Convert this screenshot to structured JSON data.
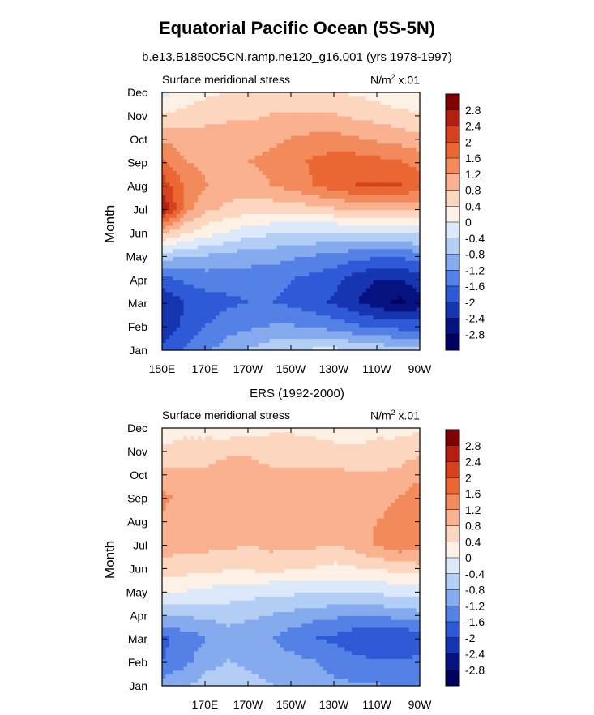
{
  "title": "Equatorial Pacific Ocean (5S-5N)",
  "subtitle": "b.e13.B1850C5CN.ramp.ne120_g16.001 (yrs 1978-1997)",
  "colorbar": {
    "labels": [
      "2.8",
      "2.4",
      "2",
      "1.6",
      "1.2",
      "0.8",
      "0.4",
      "0",
      "-0.4",
      "-0.8",
      "-1.2",
      "-1.6",
      "-2",
      "-2.4",
      "-2.8"
    ],
    "colors": [
      "#7f0000",
      "#b3200f",
      "#d5421d",
      "#ea6633",
      "#f28a5b",
      "#f9b18f",
      "#fcd6bf",
      "#fdf0e4",
      "#dce9fa",
      "#b3cef5",
      "#85aaee",
      "#5481e6",
      "#2e5ad8",
      "#1635b0",
      "#061280",
      "#000060"
    ]
  },
  "chart_data": [
    {
      "type": "heatmap",
      "title": "",
      "left_label": "Surface meridional stress",
      "right_label": "N/m",
      "right_label_sup": "2",
      "right_label_suffix": " x.01",
      "xlabel": "",
      "ylabel": "Month",
      "x_ticks": [
        "150E",
        "170E",
        "170W",
        "150W",
        "130W",
        "110W",
        "90W"
      ],
      "y_ticks": [
        "Jan",
        "Feb",
        "Mar",
        "Apr",
        "May",
        "Jun",
        "Jul",
        "Aug",
        "Sep",
        "Oct",
        "Nov",
        "Dec"
      ],
      "levels": [
        -2.8,
        -2.4,
        -2.0,
        -1.6,
        -1.2,
        -0.8,
        -0.4,
        0,
        0.4,
        0.8,
        1.2,
        1.6,
        2.0,
        2.4,
        2.8
      ],
      "lon": [
        150,
        160,
        170,
        180,
        190,
        200,
        210,
        220,
        230,
        240,
        250,
        260,
        270
      ],
      "values": [
        [
          -1.9,
          -1.6,
          -1.3,
          -1.0,
          -0.8,
          -0.6,
          -0.5,
          -0.4,
          -0.4,
          -0.5,
          -0.6,
          -0.7,
          -0.7
        ],
        [
          -2.3,
          -1.9,
          -1.6,
          -1.4,
          -1.3,
          -1.2,
          -1.2,
          -1.3,
          -1.4,
          -1.6,
          -1.7,
          -1.8,
          -1.8
        ],
        [
          -2.4,
          -2.0,
          -1.8,
          -1.7,
          -1.6,
          -1.6,
          -1.7,
          -1.9,
          -2.1,
          -2.4,
          -2.7,
          -2.9,
          -2.6
        ],
        [
          -1.7,
          -1.5,
          -1.4,
          -1.4,
          -1.4,
          -1.5,
          -1.6,
          -1.7,
          -1.9,
          -2.2,
          -2.4,
          -2.4,
          -2.1
        ],
        [
          -0.6,
          -0.7,
          -0.8,
          -0.9,
          -1.0,
          -1.0,
          -1.1,
          -1.2,
          -1.3,
          -1.4,
          -1.5,
          -1.5,
          -1.3
        ],
        [
          0.9,
          0.5,
          0.2,
          0.0,
          -0.2,
          -0.3,
          -0.4,
          -0.4,
          -0.4,
          -0.4,
          -0.3,
          -0.3,
          -0.2
        ],
        [
          2.7,
          1.4,
          0.9,
          0.7,
          0.6,
          0.6,
          0.6,
          0.7,
          0.8,
          0.9,
          1.0,
          1.0,
          0.9
        ],
        [
          2.2,
          1.5,
          1.2,
          1.1,
          1.0,
          1.2,
          1.4,
          1.6,
          1.9,
          2.0,
          2.0,
          2.0,
          1.8
        ],
        [
          1.6,
          1.2,
          1.1,
          1.1,
          1.2,
          1.3,
          1.4,
          1.7,
          1.8,
          1.8,
          1.7,
          1.6,
          1.4
        ],
        [
          1.1,
          1.0,
          1.0,
          1.0,
          1.1,
          1.1,
          1.2,
          1.3,
          1.3,
          1.2,
          1.1,
          1.0,
          0.9
        ],
        [
          0.4,
          0.5,
          0.6,
          0.7,
          0.7,
          0.8,
          0.8,
          0.8,
          0.8,
          0.7,
          0.6,
          0.5,
          0.4
        ],
        [
          -0.2,
          0.2,
          0.3,
          0.4,
          0.5,
          0.5,
          0.5,
          0.4,
          0.4,
          0.3,
          0.2,
          0.1,
          0.1
        ]
      ]
    },
    {
      "type": "heatmap",
      "title": "ERS (1992-2000)",
      "left_label": "Surface meridional stress",
      "right_label": "N/m",
      "right_label_sup": "2",
      "right_label_suffix": " x.01",
      "xlabel": "",
      "ylabel": "Month",
      "x_ticks": [
        "",
        "170E",
        "170W",
        "150W",
        "130W",
        "110W",
        "90W"
      ],
      "y_ticks": [
        "Jan",
        "Feb",
        "Mar",
        "Apr",
        "May",
        "Jun",
        "Jul",
        "Aug",
        "Sep",
        "Oct",
        "Nov",
        "Dec"
      ],
      "levels": [
        -2.8,
        -2.4,
        -2.0,
        -1.6,
        -1.2,
        -0.8,
        -0.4,
        0,
        0.4,
        0.8,
        1.2,
        1.6,
        2.0,
        2.4,
        2.8
      ],
      "lon": [
        150,
        160,
        170,
        180,
        190,
        200,
        210,
        220,
        230,
        240,
        250,
        260,
        270
      ],
      "values": [
        [
          -1.0,
          -0.9,
          -0.6,
          -0.5,
          -0.7,
          -0.8,
          -0.9,
          -1.0,
          -1.1,
          -1.2,
          -1.2,
          -1.3,
          -1.2
        ],
        [
          -1.6,
          -1.3,
          -1.0,
          -0.8,
          -0.9,
          -1.0,
          -1.1,
          -1.2,
          -1.4,
          -1.5,
          -1.6,
          -1.6,
          -1.5
        ],
        [
          -1.7,
          -1.4,
          -1.2,
          -1.0,
          -1.1,
          -1.2,
          -1.4,
          -1.6,
          -1.7,
          -1.9,
          -2.0,
          -2.0,
          -1.8
        ],
        [
          -0.7,
          -0.7,
          -0.7,
          -0.6,
          -0.7,
          -0.8,
          -0.9,
          -1.0,
          -1.1,
          -1.1,
          -1.1,
          -1.0,
          -0.9
        ],
        [
          0.1,
          0.0,
          -0.1,
          -0.2,
          -0.2,
          -0.3,
          -0.3,
          -0.3,
          -0.3,
          -0.3,
          -0.3,
          -0.2,
          -0.2
        ],
        [
          0.7,
          0.6,
          0.6,
          0.5,
          0.5,
          0.6,
          0.5,
          0.4,
          0.3,
          0.4,
          0.5,
          0.6,
          0.7
        ],
        [
          1.0,
          0.9,
          0.9,
          0.9,
          0.8,
          0.9,
          0.9,
          0.9,
          0.8,
          1.0,
          1.3,
          1.5,
          1.4
        ],
        [
          1.1,
          1.0,
          1.0,
          1.0,
          1.0,
          1.0,
          1.1,
          1.0,
          0.9,
          1.1,
          1.2,
          1.3,
          1.5
        ],
        [
          1.3,
          1.0,
          1.0,
          1.1,
          1.1,
          1.1,
          1.1,
          1.1,
          1.0,
          1.0,
          1.1,
          1.2,
          1.5
        ],
        [
          0.9,
          0.9,
          0.9,
          1.0,
          1.0,
          0.9,
          0.9,
          0.9,
          0.9,
          0.8,
          0.8,
          0.9,
          1.1
        ],
        [
          0.5,
          0.6,
          0.6,
          0.7,
          0.7,
          0.6,
          0.6,
          0.6,
          0.5,
          0.5,
          0.6,
          0.6,
          0.7
        ],
        [
          0.1,
          0.2,
          0.2,
          0.1,
          0.2,
          0.3,
          0.3,
          0.2,
          0.2,
          0.1,
          0.2,
          0.2,
          0.3
        ]
      ]
    }
  ]
}
